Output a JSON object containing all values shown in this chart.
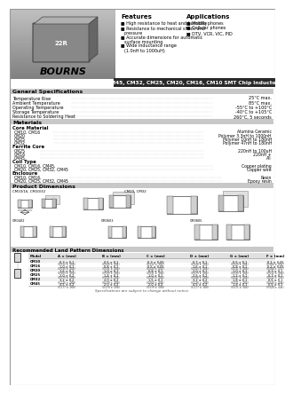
{
  "title": "CM45, CM32, CM25, CM20, CM16, CM10 SMT Chip Inductors",
  "title_bar_color": "#2a2a2a",
  "title_text_color": "#ffffff",
  "bg_color": "#ffffff",
  "section_bg": "#cccccc",
  "features_title": "Features",
  "features": [
    "High resistance to heat and humidity",
    "Resistance to mechanical shock and\npressure",
    "Accurate dimensions for automatic\nsurface mounting",
    "Wide inductance range\n(1.0nH to 1000uH)"
  ],
  "applications_title": "Applications",
  "applications": [
    "Mobile phones",
    "Cellular phones",
    "DTV, VCR, VIC, PID"
  ],
  "gen_spec_title": "General Specifications",
  "gen_specs": [
    [
      "Temperature Rise",
      "25°C max."
    ],
    [
      "Ambient Temperature",
      "85°C max."
    ],
    [
      "Operating Temperature",
      "-55°C to +100°C"
    ],
    [
      "Storage Temperature",
      "-40°C to +105°C"
    ],
    [
      "Resistance to Soldering Heat",
      "260°C, 5 seconds"
    ]
  ],
  "materials_title": "Materials",
  "core_material_title": "Core Material",
  "core_items": [
    [
      "CM10, CM16",
      "Alumina Ceramic"
    ],
    [
      "CM20",
      "Polymer 3.3nH to 1000nH"
    ],
    [
      "CM25",
      "Polymer 10nH to 180nH"
    ],
    [
      "CM32",
      "Polymer 47nH to 180nH"
    ]
  ],
  "ferrite_core_title": "Ferrite Core",
  "ferrite_items": [
    [
      "CM25",
      "220nH to 100uH"
    ],
    [
      "CM16",
      "220nH +"
    ],
    [
      "CM45",
      "All"
    ]
  ],
  "coil_type_title": "Coil Type",
  "coil_items": [
    [
      "CM10, CM16, CM45,",
      "Copper plating"
    ],
    [
      "CM20, CM25, CM32, CM45",
      "Copper wire"
    ]
  ],
  "enclosure_title": "Enclosure",
  "enclosure_items": [
    [
      "CM10, CM16,",
      "Resin"
    ],
    [
      "CM20, CM25, CM32, CM45",
      "Epoxy resin"
    ]
  ],
  "product_dim_title": "Product Dimensions",
  "land_title": "Recommended Land Pattern Dimensions",
  "models": [
    "CM10",
    "CM16",
    "CM20",
    "CM25",
    "CM32",
    "CM45"
  ],
  "col_headers": [
    "Model",
    "A ± (mm)",
    "B ± (mm)",
    "C ± (mm)",
    "D ± (mm)",
    "G ± (mm)",
    "F ± (mm)"
  ],
  "table_rows": [
    [
      "CM10",
      "0.3 ± 0.1 (0.012 ± .004)",
      "0.5 ± 0.1 (0.020 ± .004)",
      "0.3 ± 0.05 (0.012 ± .002)",
      "0.7 ± 0.1 (0.028 ± .004)",
      "0.5 ± 0.1 (0.020 ± .004)",
      "0.1 ± 0.05 (0.004 ± .002)"
    ],
    [
      "CM16",
      "1.0 ± 0.1 (0.039 ± .004)",
      "0.8 ± 0.1 (0.031 ± .004)",
      "0.5 ± 0.05 (0.020 ± .002)",
      "1.6 ± 0.1 (0.063 ± .004)",
      "0.8 ± 0.1 (0.031 ± .004)",
      "0.2 ± 0.05 (0.008 ± .002)"
    ],
    [
      "CM20",
      "1.6 ± 0.1 (0.063 ± .004)",
      "1.0 ± 0.1 (0.039 ± .004)",
      "0.8 ± 0.1 (0.031 ± .004)",
      "2.0 ± 0.1 (0.079 ± .004)",
      "1.0 ± 0.1 (0.039 ± .004)",
      "0.3 ± 0.1 (0.012 ± .004)"
    ],
    [
      "CM25",
      "2.0 ± 0.2 (0.079 ± .008)",
      "1.4 ± 0.1 (0.055 ± .004)",
      "1.0 ± 0.1 (0.039 ± .004)",
      "2.5 ± 0.2 (0.098 ± .008)",
      "1.2 ± 0.1 (0.047 ± .004)",
      "0.3 ± 0.1 (0.012 ± .004)"
    ],
    [
      "CM32",
      "3.2 ± 0.2 (0.126 ± .008)",
      "2.0 ± 0.2 (0.079 ± .008)",
      "1.5 ± 0.1 (0.059 ± .004)",
      "3.2 ± 0.2 (0.126 ± .008)",
      "1.8 ± 0.1 (0.071 ± .004)",
      "0.5 ± 0.1 (0.020 ± .004)"
    ],
    [
      "CM45",
      "4.5 ± 0.2 (0.177 ± .008)",
      "2.0 ± 0.2 (0.079 ± .008)",
      "2.0 ± 0.2 (0.079 ± .008)",
      "4.5 ± 0.2 (0.177 ± .008)",
      "1.8 ± 0.1 (0.071 ± .004)",
      "0.5 ± 0.1 (0.020 ± .004)"
    ]
  ],
  "footer_note": "Specifications are subject to change without notice."
}
